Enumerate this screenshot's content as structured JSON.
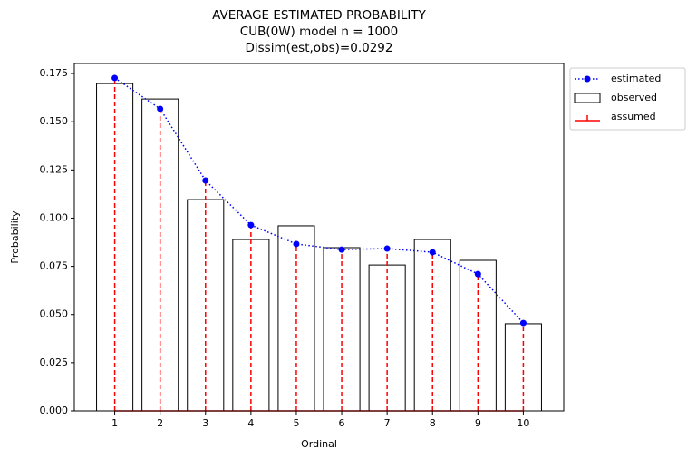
{
  "chart_data": {
    "type": "bar",
    "title": [
      "AVERAGE ESTIMATED PROBABILITY",
      "CUB(0W) model    n = 1000",
      "Dissim(est,obs)=0.0292"
    ],
    "x_label": "Ordinal",
    "y_label": "Probability",
    "x": [
      1,
      2,
      3,
      4,
      5,
      6,
      7,
      8,
      9,
      10
    ],
    "series": [
      {
        "name": "estimated",
        "type": "line",
        "color": "#0000ff",
        "values": [
          0.1727,
          0.1567,
          0.1195,
          0.0964,
          0.0866,
          0.0837,
          0.0842,
          0.0823,
          0.071,
          0.0456
        ]
      },
      {
        "name": "observed",
        "type": "bar",
        "color": "#000000",
        "values": [
          0.1698,
          0.1618,
          0.1096,
          0.0889,
          0.096,
          0.0847,
          0.0757,
          0.0889,
          0.0781,
          0.0452
        ]
      },
      {
        "name": "assumed",
        "type": "stem",
        "color": "#ff0000",
        "values": [
          0.1727,
          0.1567,
          0.1195,
          0.0964,
          0.0866,
          0.0837,
          0.0842,
          0.0823,
          0.071,
          0.0456
        ]
      }
    ],
    "xlim": [
      0.11,
      10.89
    ],
    "xticks": [
      1,
      2,
      3,
      4,
      5,
      6,
      7,
      8,
      9,
      10
    ],
    "ylim": [
      0,
      0.1802
    ],
    "yticks": [
      {
        "value": 0,
        "label": "0.000"
      },
      {
        "value": 0.025,
        "label": "0.025"
      },
      {
        "value": 0.05,
        "label": "0.050"
      },
      {
        "value": 0.075,
        "label": "0.075"
      },
      {
        "value": 0.1,
        "label": "0.100"
      },
      {
        "value": 0.125,
        "label": "0.125"
      },
      {
        "value": 0.15,
        "label": "0.150"
      },
      {
        "value": 0.175,
        "label": "0.175"
      }
    ],
    "legend": "outside-upper-right"
  }
}
